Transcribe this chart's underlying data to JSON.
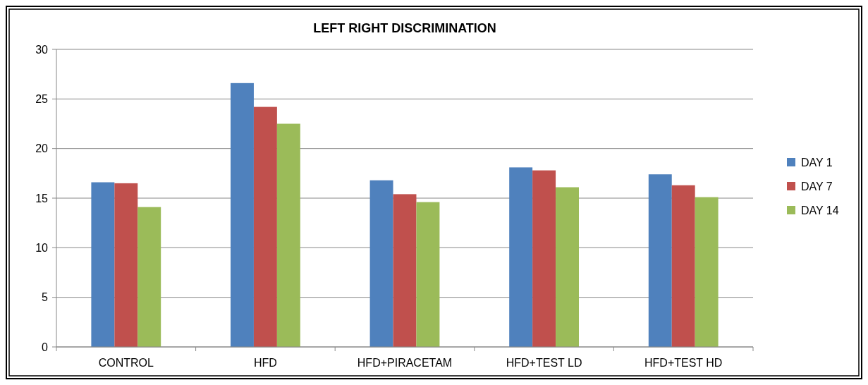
{
  "chart_data": {
    "type": "bar",
    "title": "LEFT RIGHT DISCRIMINATION",
    "categories": [
      "CONTROL",
      "HFD",
      "HFD+PIRACETAM",
      "HFD+TEST LD",
      "HFD+TEST HD"
    ],
    "series": [
      {
        "name": "DAY 1",
        "color": "#4f81bd",
        "values": [
          16.6,
          26.6,
          16.8,
          18.1,
          17.4
        ]
      },
      {
        "name": "DAY 7",
        "color": "#c0504d",
        "values": [
          16.5,
          24.2,
          15.4,
          17.8,
          16.3
        ]
      },
      {
        "name": "DAY 14",
        "color": "#9bbb59",
        "values": [
          14.1,
          22.5,
          14.6,
          16.1,
          15.1
        ]
      }
    ],
    "ylim": [
      0,
      30
    ],
    "yticks": [
      0,
      5,
      10,
      15,
      20,
      25,
      30
    ],
    "grid": "y",
    "legend": "right"
  }
}
